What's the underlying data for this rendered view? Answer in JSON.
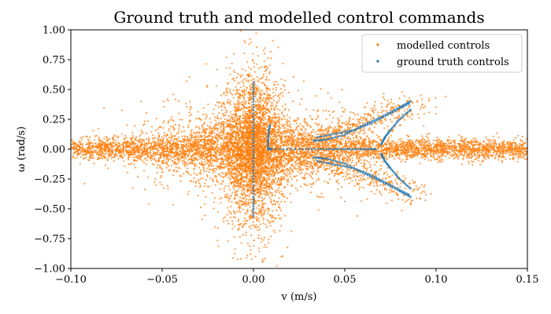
{
  "chart_data": {
    "type": "scatter",
    "title": "Ground truth and modelled control commands",
    "xlabel": "v (m/s)",
    "ylabel": "ω (rad/s)",
    "xlim": [
      -0.1,
      0.15
    ],
    "ylim": [
      -1.0,
      1.0
    ],
    "x_ticks": [
      -0.1,
      -0.05,
      0.0,
      0.05,
      0.1,
      0.15
    ],
    "y_ticks": [
      -1.0,
      -0.75,
      -0.5,
      -0.25,
      0.0,
      0.25,
      0.5,
      0.75,
      1.0
    ],
    "x_tick_labels": [
      "−0.10",
      "−0.05",
      "0.00",
      "0.05",
      "0.10",
      "0.15"
    ],
    "y_tick_labels": [
      "−1.00",
      "−0.75",
      "−0.50",
      "−0.25",
      "0.00",
      "0.25",
      "0.50",
      "0.75",
      "1.00"
    ],
    "grid": false,
    "legend_position": "top-right",
    "series": [
      {
        "name": "modelled controls",
        "color": "#ff7f0e",
        "marker": "dot",
        "distribution": {
          "description_points": [
            [
              -0.1,
              0.0
            ],
            [
              -0.05,
              0.0
            ],
            [
              0.0,
              0.0
            ],
            [
              0.0,
              0.8
            ],
            [
              0.0,
              -0.95
            ],
            [
              0.05,
              0.0
            ],
            [
              0.1,
              0.0
            ],
            [
              0.15,
              0.0
            ],
            [
              0.01,
              0.45
            ],
            [
              0.01,
              -0.45
            ],
            [
              0.06,
              0.3
            ],
            [
              0.06,
              -0.3
            ],
            [
              -0.03,
              0.25
            ],
            [
              -0.03,
              -0.25
            ]
          ]
        }
      },
      {
        "name": "ground truth controls",
        "color": "#1f77b4",
        "marker": "dot",
        "points": [
          [
            0.0,
            0.56
          ],
          [
            0.0,
            0.4
          ],
          [
            0.0,
            0.2
          ],
          [
            0.0,
            0.0
          ],
          [
            0.0,
            -0.2
          ],
          [
            0.0,
            -0.4
          ],
          [
            0.0,
            -0.56
          ],
          [
            0.009,
            0.2
          ],
          [
            0.008,
            0.1
          ],
          [
            0.008,
            0.0
          ],
          [
            0.01,
            0.0
          ],
          [
            0.027,
            0.0
          ],
          [
            0.04,
            0.0
          ],
          [
            0.05,
            0.0
          ],
          [
            0.06,
            0.0
          ],
          [
            0.067,
            0.0
          ],
          [
            0.033,
            0.07
          ],
          [
            0.04,
            0.08
          ],
          [
            0.05,
            0.12
          ],
          [
            0.06,
            0.2
          ],
          [
            0.07,
            0.27
          ],
          [
            0.08,
            0.35
          ],
          [
            0.086,
            0.4
          ],
          [
            0.035,
            0.1
          ],
          [
            0.045,
            0.13
          ],
          [
            0.055,
            0.16
          ],
          [
            0.065,
            0.22
          ],
          [
            0.075,
            0.3
          ],
          [
            0.085,
            0.38
          ],
          [
            0.07,
            0.04
          ],
          [
            0.072,
            0.1
          ],
          [
            0.075,
            0.16
          ],
          [
            0.08,
            0.25
          ],
          [
            0.086,
            0.33
          ],
          [
            0.033,
            -0.07
          ],
          [
            0.04,
            -0.08
          ],
          [
            0.05,
            -0.12
          ],
          [
            0.06,
            -0.2
          ],
          [
            0.07,
            -0.27
          ],
          [
            0.08,
            -0.35
          ],
          [
            0.086,
            -0.4
          ],
          [
            0.035,
            -0.1
          ],
          [
            0.045,
            -0.13
          ],
          [
            0.055,
            -0.16
          ],
          [
            0.065,
            -0.22
          ],
          [
            0.075,
            -0.3
          ],
          [
            0.085,
            -0.38
          ],
          [
            0.07,
            -0.04
          ],
          [
            0.072,
            -0.1
          ],
          [
            0.075,
            -0.16
          ],
          [
            0.08,
            -0.25
          ],
          [
            0.086,
            -0.33
          ]
        ]
      }
    ]
  }
}
